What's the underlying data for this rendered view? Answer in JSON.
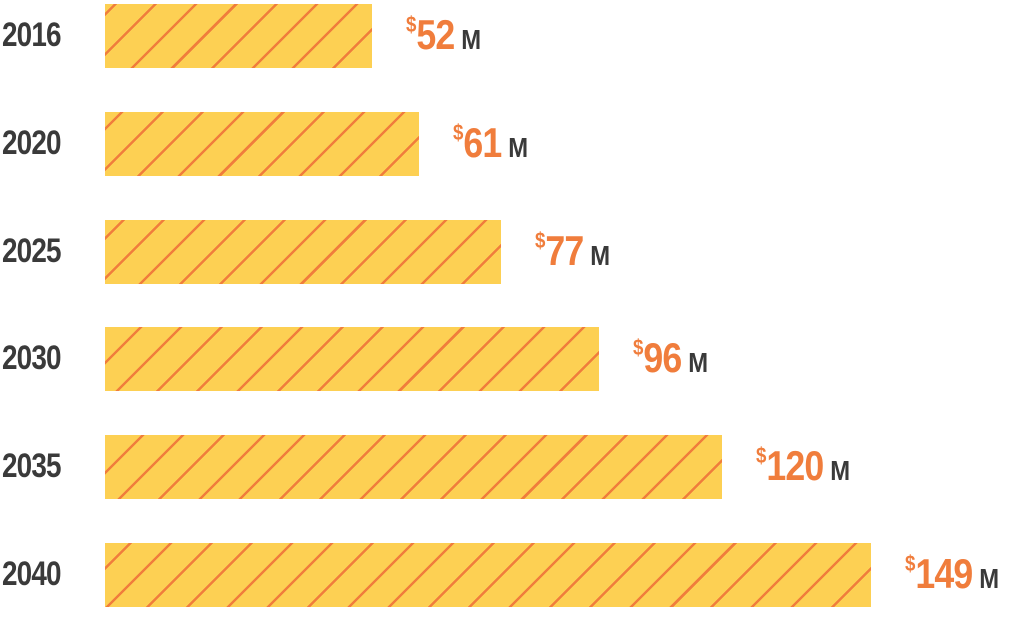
{
  "chart_data": {
    "type": "bar",
    "orientation": "horizontal",
    "categories": [
      "2016",
      "2020",
      "2025",
      "2030",
      "2035",
      "2040"
    ],
    "values": [
      52,
      61,
      77,
      96,
      120,
      149
    ],
    "value_prefix": "$",
    "value_suffix": "M",
    "title": "",
    "xlabel": "",
    "ylabel": "",
    "grid": false,
    "legend": "none",
    "colors": {
      "bar_fill": "#fdd053",
      "bar_stripe": "#f07d3c",
      "value_text": "#f07d3c",
      "label_text": "#3a3a3a"
    }
  }
}
